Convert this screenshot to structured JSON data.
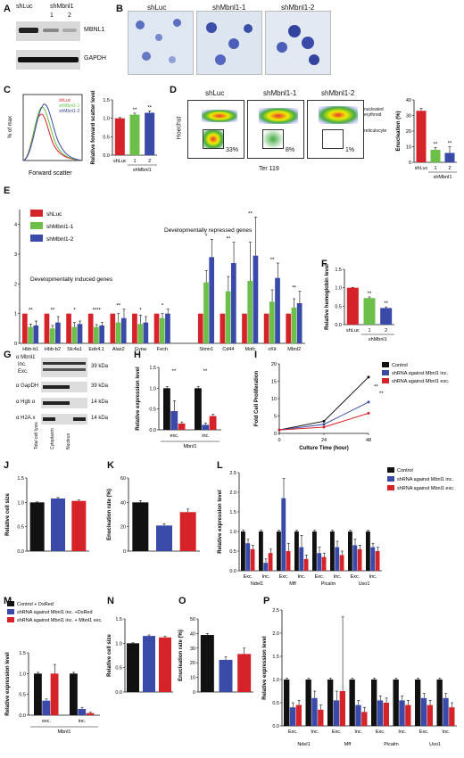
{
  "panels": {
    "A": {
      "letter": "A",
      "cols": [
        "shLuc",
        "shMbnl1",
        "1",
        "2"
      ],
      "rows": [
        "MBNL1",
        "GAPDH"
      ]
    },
    "B": {
      "letter": "B",
      "titles": [
        "shLuc",
        "shMbnl1-1",
        "shMbnl1-2"
      ]
    },
    "C": {
      "letter": "C",
      "hist_ylabel": "% of max",
      "hist_xlabel": "Forward scatter",
      "hist_legend": [
        "shLuc",
        "shMbnl1-1",
        "shMbnl1-2"
      ],
      "hist_ticks": [
        "0",
        "20",
        "40",
        "60",
        "80",
        "100"
      ],
      "hist_xticks": [
        "0",
        "50K",
        "100K",
        "150K",
        "200K",
        "250K"
      ]
    },
    "D": {
      "letter": "D",
      "titles": [
        "shLuc",
        "shMbnl1-1",
        "shMbnl1-2"
      ],
      "percents": [
        "33%",
        "8%",
        "1%"
      ],
      "xlabel": "Ter 119",
      "ylabel": "Hoechst",
      "annot1": "nucleated erythroid",
      "annot2": "reticulocyte"
    },
    "E": {
      "letter": "E",
      "legend": [
        "shLuc",
        "shMbnl1-1",
        "shMbnl1-2"
      ],
      "group1": "Developmentally induced genes",
      "group2": "Developmentally repressed genes"
    },
    "F": {
      "letter": "F"
    },
    "G": {
      "letter": "G",
      "rows": [
        "α Mbnl1",
        "α GapDH",
        "α Hgb α",
        "α H2A.x"
      ],
      "sizes": [
        "39 kDa",
        "39 kDa",
        "14 kDa",
        "14 kDa"
      ],
      "inc": "Inc.",
      "exc": "Exc.",
      "cols": [
        "Total cell lysis",
        "Cytoplasm",
        "Nucleus"
      ]
    },
    "H": {
      "letter": "H"
    },
    "I": {
      "letter": "I"
    },
    "J": {
      "letter": "J"
    },
    "K": {
      "letter": "K"
    },
    "L": {
      "letter": "L"
    },
    "M": {
      "letter": "M"
    },
    "N": {
      "letter": "N"
    },
    "O": {
      "letter": "O"
    },
    "P": {
      "letter": "P"
    }
  },
  "colors": {
    "black": "#111111",
    "red": "#d6232a",
    "green": "#6cc04a",
    "blue": "#3a4aa8",
    "dred": "#cc1f1f",
    "grey": "#555555"
  },
  "chart_data": [
    {
      "id": "C_bar",
      "type": "bar",
      "ylabel": "Relative forward scatter level",
      "categories": [
        "shLuc",
        "1",
        "2"
      ],
      "group_label": "shMbnl1",
      "values": [
        1.0,
        1.1,
        1.15
      ],
      "errors": [
        0.02,
        0.04,
        0.05
      ],
      "colors": [
        "#d6232a",
        "#6cc04a",
        "#3a4aa8"
      ],
      "ylim": [
        0,
        1.5
      ],
      "yticks": [
        "0.0",
        "0.5",
        "1.0",
        "1.5"
      ],
      "sig": [
        "",
        "**",
        "**"
      ]
    },
    {
      "id": "D_bar",
      "type": "bar",
      "ylabel": "Enucleation (%)",
      "categories": [
        "shLuc",
        "1",
        "2"
      ],
      "group_label": "shMbnl1",
      "values": [
        33,
        8,
        6
      ],
      "errors": [
        1.5,
        1.5,
        4
      ],
      "colors": [
        "#d6232a",
        "#6cc04a",
        "#3a4aa8"
      ],
      "ylim": [
        0,
        40
      ],
      "yticks": [
        "0",
        "10",
        "20",
        "30",
        "40"
      ],
      "sig": [
        "",
        "**",
        "**"
      ]
    },
    {
      "id": "E",
      "type": "bar",
      "ylabel": "",
      "ylim": [
        0,
        4.5
      ],
      "yticks": [
        "0",
        "1",
        "2",
        "3",
        "4"
      ],
      "series": [
        {
          "name": "shLuc"
        },
        {
          "name": "shMbnl1-1"
        },
        {
          "name": "shMbnl1-2"
        }
      ],
      "categories": [
        "Hbb-b1",
        "Hbb-b2",
        "Slc4a1",
        "Epb4.1",
        "Alas2",
        "Gypa",
        "Fech",
        "",
        "Stmn1",
        "Cd44",
        "Mgfc",
        "cKit",
        "Mbnl2"
      ],
      "groups": [
        [
          1,
          0.55,
          0.6
        ],
        [
          1,
          0.5,
          0.7
        ],
        [
          1,
          0.55,
          0.65
        ],
        [
          1,
          0.55,
          0.6
        ],
        [
          1,
          0.7,
          0.85
        ],
        [
          1,
          0.65,
          0.7
        ],
        [
          1,
          0.85,
          1.0
        ],
        null,
        [
          1,
          2.05,
          2.9
        ],
        [
          1,
          1.75,
          2.7
        ],
        [
          1,
          2.1,
          2.95
        ],
        [
          1,
          1.4,
          2.2
        ],
        [
          1,
          1.2,
          1.35
        ]
      ],
      "errors": [
        [
          0,
          0.1,
          0.15
        ],
        [
          0,
          0.1,
          0.2
        ],
        [
          0,
          0.15,
          0.1
        ],
        [
          0,
          0.08,
          0.1
        ],
        [
          0,
          0.3,
          0.3
        ],
        [
          0,
          0.3,
          0.2
        ],
        [
          0,
          0.15,
          0.15
        ],
        null,
        [
          0,
          0.4,
          0.6
        ],
        [
          0,
          0.5,
          0.7
        ],
        [
          0,
          1.3,
          1.3
        ],
        [
          0,
          0.4,
          0.5
        ],
        [
          0,
          0.3,
          0.4
        ]
      ],
      "sig": [
        "**",
        "**",
        "*",
        "****",
        "**",
        "*",
        "*",
        "",
        "*",
        "**",
        "**",
        "**",
        "**"
      ]
    },
    {
      "id": "F",
      "type": "bar",
      "ylabel": "Relative hemoglobin level",
      "categories": [
        "shLuc",
        "1",
        "2"
      ],
      "group_label": "shMbnl1",
      "values": [
        1.0,
        0.72,
        0.45
      ],
      "errors": [
        0.01,
        0.03,
        0.03
      ],
      "colors": [
        "#d6232a",
        "#6cc04a",
        "#3a4aa8"
      ],
      "ylim": [
        0,
        1.5
      ],
      "yticks": [
        "0.0",
        "0.5",
        "1.0",
        "1.5"
      ],
      "sig": [
        "",
        "**",
        "**"
      ]
    },
    {
      "id": "H",
      "type": "bar",
      "ylabel": "Relative expression level",
      "categories": [
        "exc.",
        "inc."
      ],
      "group_label": "Mbnl1",
      "groups": [
        [
          1,
          0.45,
          0.15
        ],
        [
          1,
          0.12,
          0.33
        ]
      ],
      "errors": [
        [
          0.04,
          0.25,
          0.04
        ],
        [
          0.04,
          0.04,
          0.05
        ]
      ],
      "colors": [
        "#111111",
        "#3a4aa8",
        "#d6232a"
      ],
      "ylim": [
        0,
        1.5
      ],
      "yticks": [
        "0.0",
        "0.5",
        "1.0",
        "1.5"
      ]
    },
    {
      "id": "I",
      "type": "line",
      "xlabel": "Culture Time (hour)",
      "ylabel": "Fold Cell Proliferation",
      "x": [
        0,
        24,
        48
      ],
      "xticks": [
        "0",
        "24",
        "48"
      ],
      "ylim": [
        0,
        20
      ],
      "yticks": [
        "0",
        "5",
        "10",
        "15",
        "20"
      ],
      "series": [
        {
          "name": "Control",
          "values": [
            1,
            3.5,
            16.2
          ]
        },
        {
          "name": "shRNA against Mbnl1 inc.",
          "values": [
            1,
            2.6,
            9.0
          ]
        },
        {
          "name": "shRNA against Mbnl1 exc.",
          "values": [
            1,
            1.8,
            5.8
          ]
        }
      ],
      "colors": [
        "#111111",
        "#3a4aa8",
        "#d6232a"
      ],
      "sig": [
        "**",
        "**"
      ]
    },
    {
      "id": "J",
      "type": "bar",
      "ylabel": "Relative cell size",
      "values": [
        1.0,
        1.08,
        1.03
      ],
      "errors": [
        0.01,
        0.02,
        0.02
      ],
      "colors": [
        "#111111",
        "#3a4aa8",
        "#d6232a"
      ],
      "ylim": [
        0,
        1.5
      ],
      "yticks": [
        "0.0",
        "0.5",
        "1.0",
        "1.5"
      ]
    },
    {
      "id": "K",
      "type": "bar",
      "ylabel": "Enucleation rate (%)",
      "values": [
        40,
        21,
        32
      ],
      "errors": [
        1.5,
        1.5,
        2.5
      ],
      "colors": [
        "#111111",
        "#3a4aa8",
        "#d6232a"
      ],
      "ylim": [
        0,
        60
      ],
      "yticks": [
        "0",
        "20",
        "40",
        "60"
      ]
    },
    {
      "id": "L",
      "type": "bar",
      "ylabel": "Relative expression level",
      "ylim": [
        0,
        2.5
      ],
      "yticks": [
        "0.0",
        "0.5",
        "1.0",
        "1.5",
        "2.0",
        "2.5"
      ],
      "series": [
        {
          "name": "Control"
        },
        {
          "name": "shRNA against Mbnl1 inc."
        },
        {
          "name": "shRNA against Mbnl1 exc."
        }
      ],
      "categories": [
        "Exc.",
        "Inc.",
        "Exc.",
        "Inc.",
        "Exc.",
        "Inc.",
        "Exc.",
        "Inc."
      ],
      "genes": [
        "Ndel1",
        "Mff",
        "Picalm",
        "Uso1"
      ],
      "groups": [
        [
          1,
          0.7,
          0.55
        ],
        [
          1,
          0.2,
          0.45
        ],
        [
          1,
          1.85,
          0.5
        ],
        [
          1,
          0.6,
          0.3
        ],
        [
          1,
          0.45,
          0.35
        ],
        [
          1,
          0.6,
          0.4
        ],
        [
          1,
          0.65,
          0.55
        ],
        [
          1,
          0.6,
          0.5
        ]
      ],
      "errors": [
        [
          0.03,
          0.1,
          0.1
        ],
        [
          0.03,
          0.1,
          0.1
        ],
        [
          0.03,
          0.5,
          0.2
        ],
        [
          0.03,
          0.3,
          0.1
        ],
        [
          0.03,
          0.15,
          0.1
        ],
        [
          0.03,
          0.15,
          0.1
        ],
        [
          0.03,
          0.15,
          0.1
        ],
        [
          0.03,
          0.1,
          0.1
        ]
      ],
      "colors": [
        "#111111",
        "#3a4aa8",
        "#d6232a"
      ]
    },
    {
      "id": "M",
      "type": "bar",
      "ylabel": "Relative expression level",
      "categories": [
        "exc.",
        "inc."
      ],
      "group_label": "Mbnl1",
      "series": [
        {
          "name": "Control + DsRed"
        },
        {
          "name": "shRNA against Mbnl1 inc. +DsRed"
        },
        {
          "name": "shRNA against Mbnl1 inc. + Mbnl1 exc."
        }
      ],
      "groups": [
        [
          1,
          0.35,
          1.0
        ],
        [
          1,
          0.15,
          0.05
        ]
      ],
      "errors": [
        [
          0.03,
          0.04,
          0.22
        ],
        [
          0.03,
          0.04,
          0.02
        ]
      ],
      "colors": [
        "#111111",
        "#3a4aa8",
        "#d6232a"
      ],
      "ylim": [
        0,
        1.5
      ],
      "yticks": [
        "0.0",
        "0.5",
        "1.0",
        "1.5"
      ]
    },
    {
      "id": "N",
      "type": "bar",
      "ylabel": "Relative cell size",
      "values": [
        1.0,
        1.15,
        1.12
      ],
      "errors": [
        0.01,
        0.02,
        0.02
      ],
      "colors": [
        "#111111",
        "#3a4aa8",
        "#d6232a"
      ],
      "ylim": [
        0,
        1.5
      ],
      "yticks": [
        "0.0",
        "0.5",
        "1.0",
        "1.5"
      ]
    },
    {
      "id": "O",
      "type": "bar",
      "ylabel": "Enucleation rate (%)",
      "values": [
        39,
        22,
        26
      ],
      "errors": [
        1,
        2,
        4
      ],
      "colors": [
        "#111111",
        "#3a4aa8",
        "#d6232a"
      ],
      "ylim": [
        0,
        50
      ],
      "yticks": [
        "0",
        "10",
        "20",
        "30",
        "40",
        "50"
      ]
    },
    {
      "id": "P",
      "type": "bar",
      "ylabel": "Relative expression level",
      "ylim": [
        0,
        2.5
      ],
      "yticks": [
        "0.0",
        "0.5",
        "1.0",
        "1.5",
        "2.0",
        "2.5"
      ],
      "categories": [
        "Exc.",
        "Inc.",
        "Exc.",
        "Inc.",
        "Exc.",
        "Inc.",
        "Exc.",
        "Inc."
      ],
      "genes": [
        "Ndel1",
        "Mff",
        "Picalm",
        "Uso1"
      ],
      "groups": [
        [
          1,
          0.4,
          0.45
        ],
        [
          1,
          0.6,
          0.35
        ],
        [
          1,
          0.55,
          0.75
        ],
        [
          1,
          0.45,
          0.3
        ],
        [
          1,
          0.55,
          0.5
        ],
        [
          1,
          0.55,
          0.45
        ],
        [
          1,
          0.6,
          0.45
        ],
        [
          1,
          0.6,
          0.4
        ]
      ],
      "errors": [
        [
          0.03,
          0.1,
          0.1
        ],
        [
          0.03,
          0.15,
          0.1
        ],
        [
          0.03,
          0.2,
          1.6
        ],
        [
          0.03,
          0.1,
          0.1
        ],
        [
          0.03,
          0.1,
          0.1
        ],
        [
          0.03,
          0.1,
          0.1
        ],
        [
          0.03,
          0.1,
          0.1
        ],
        [
          0.03,
          0.1,
          0.1
        ]
      ],
      "colors": [
        "#111111",
        "#3a4aa8",
        "#d6232a"
      ]
    }
  ]
}
